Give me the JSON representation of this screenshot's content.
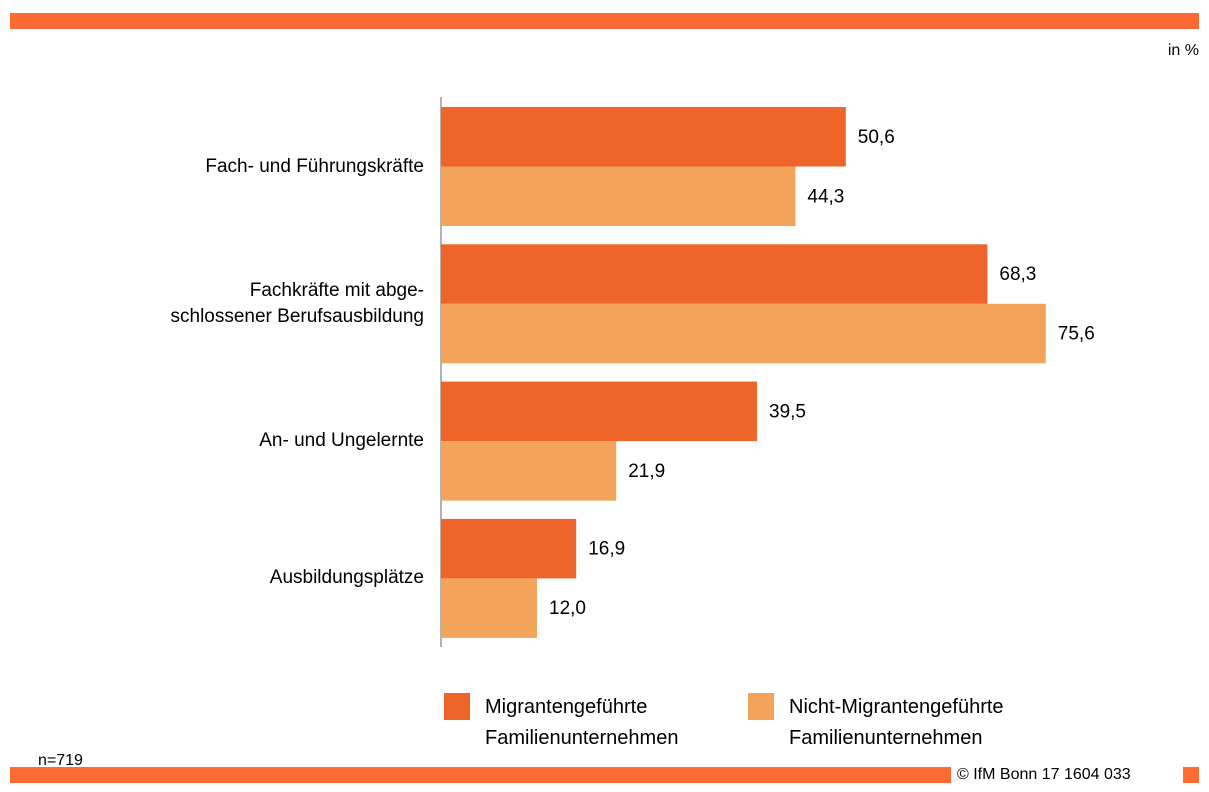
{
  "chart_data": {
    "type": "hbar",
    "unit_label": "in %",
    "sample_note": "n=719",
    "source": "© IfM Bonn 17 1604 033",
    "categories": [
      "Fach- und Führungskräfte",
      "Fachkräfte mit abge-\nschlossener Berufsausbildung",
      "An- und Ungelernte",
      "Ausbildungsplätze"
    ],
    "series": [
      {
        "name": "Migrantengeführte\nFamilienunternehmen",
        "color": "#ef6428",
        "values": [
          50.6,
          68.3,
          39.5,
          16.9
        ],
        "value_labels": [
          "50,6",
          "68,3",
          "39,5",
          "16,9"
        ]
      },
      {
        "name": "Nicht-Migrantengeführte\nFamilienunternehmen",
        "color": "#f4a35a",
        "values": [
          44.3,
          75.6,
          21.9,
          12.0
        ],
        "value_labels": [
          "44,3",
          "75,6",
          "21,9",
          "12,0"
        ]
      }
    ],
    "xlim": [
      0,
      95
    ]
  }
}
